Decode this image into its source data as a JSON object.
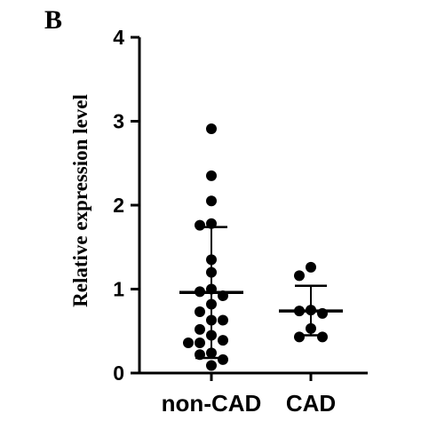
{
  "panel_label": "B",
  "chart_data": {
    "type": "scatter",
    "title": "",
    "xlabel": "",
    "ylabel": "Relative expression level",
    "ylim": [
      0,
      4
    ],
    "yticks": [
      0,
      1,
      2,
      3,
      4
    ],
    "grid": false,
    "categories": [
      "non-CAD",
      "CAD"
    ],
    "series": [
      {
        "category": "non-CAD",
        "mean": 0.96,
        "sd_upper": 1.74,
        "sd_lower": 0.18,
        "points": [
          {
            "x": "non-CAD",
            "y": 2.91
          },
          {
            "x": "non-CAD",
            "y": 2.35
          },
          {
            "x": "non-CAD",
            "y": 2.05
          },
          {
            "x": "non-CAD",
            "y": 1.78
          },
          {
            "x": "non-CAD",
            "y": 1.76
          },
          {
            "x": "non-CAD",
            "y": 1.35
          },
          {
            "x": "non-CAD",
            "y": 1.2
          },
          {
            "x": "non-CAD",
            "y": 1.0
          },
          {
            "x": "non-CAD",
            "y": 0.97
          },
          {
            "x": "non-CAD",
            "y": 0.92
          },
          {
            "x": "non-CAD",
            "y": 0.82
          },
          {
            "x": "non-CAD",
            "y": 0.73
          },
          {
            "x": "non-CAD",
            "y": 0.63
          },
          {
            "x": "non-CAD",
            "y": 0.63
          },
          {
            "x": "non-CAD",
            "y": 0.52
          },
          {
            "x": "non-CAD",
            "y": 0.45
          },
          {
            "x": "non-CAD",
            "y": 0.39
          },
          {
            "x": "non-CAD",
            "y": 0.36
          },
          {
            "x": "non-CAD",
            "y": 0.36
          },
          {
            "x": "non-CAD",
            "y": 0.24
          },
          {
            "x": "non-CAD",
            "y": 0.22
          },
          {
            "x": "non-CAD",
            "y": 0.16
          },
          {
            "x": "non-CAD",
            "y": 0.09
          }
        ]
      },
      {
        "category": "CAD",
        "mean": 0.74,
        "sd_upper": 1.04,
        "sd_lower": 0.45,
        "points": [
          {
            "x": "CAD",
            "y": 1.26
          },
          {
            "x": "CAD",
            "y": 1.16
          },
          {
            "x": "CAD",
            "y": 0.75
          },
          {
            "x": "CAD",
            "y": 0.74
          },
          {
            "x": "CAD",
            "y": 0.71
          },
          {
            "x": "CAD",
            "y": 0.53
          },
          {
            "x": "CAD",
            "y": 0.43
          },
          {
            "x": "CAD",
            "y": 0.43
          }
        ]
      }
    ],
    "colors": {
      "points": "#000000",
      "lines": "#000000"
    }
  }
}
